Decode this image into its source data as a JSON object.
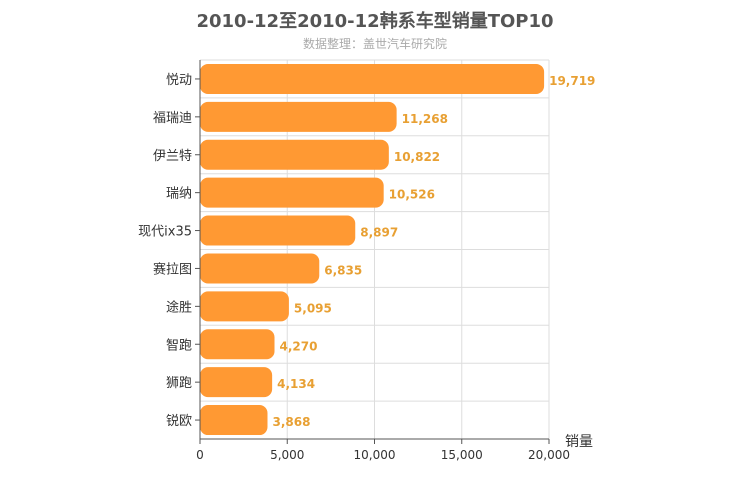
{
  "chart_data": {
    "type": "bar",
    "orientation": "horizontal",
    "title": "2010-12至2010-12韩系车型销量TOP10",
    "subtitle": "数据整理：盖世汽车研究院",
    "xlabel": "销量",
    "ylabel": "",
    "xlim": [
      0,
      20000
    ],
    "x_ticks": [
      "0",
      "5,000",
      "10,000",
      "15,000",
      "20,000"
    ],
    "grid": true,
    "categories": [
      "悦动",
      "福瑞迪",
      "伊兰特",
      "瑞纳",
      "现代ix35",
      "赛拉图",
      "途胜",
      "智跑",
      "狮跑",
      "锐欧"
    ],
    "values": [
      19719,
      11268,
      10822,
      10526,
      8897,
      6835,
      5095,
      4270,
      4134,
      3868
    ],
    "value_labels": [
      "19,719",
      "11,268",
      "10,822",
      "10,526",
      "8,897",
      "6,835",
      "5,095",
      "4,270",
      "4,134",
      "3,868"
    ],
    "bar_color": "#ff9933",
    "value_label_color": "#e8a033"
  }
}
